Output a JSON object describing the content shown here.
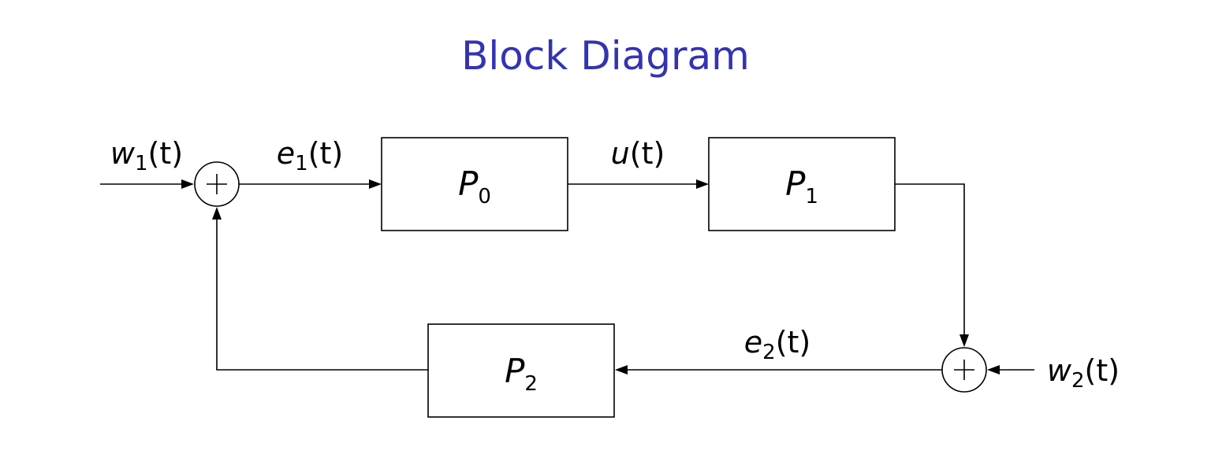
{
  "title": "Block Diagram",
  "blocks": {
    "p0": {
      "name": "P",
      "sub": "0"
    },
    "p1": {
      "name": "P",
      "sub": "1"
    },
    "p2": {
      "name": "P",
      "sub": "2"
    }
  },
  "signals": {
    "w1": {
      "name": "w",
      "sub": "1",
      "arg": "(t)"
    },
    "e1": {
      "name": "e",
      "sub": "1",
      "arg": "(t)"
    },
    "u": {
      "name": "u",
      "arg": "(t)"
    },
    "e2": {
      "name": "e",
      "sub": "2",
      "arg": "(t)"
    },
    "w2": {
      "name": "w",
      "sub": "2",
      "arg": "(t)"
    }
  },
  "summing_junction_symbol": "+"
}
